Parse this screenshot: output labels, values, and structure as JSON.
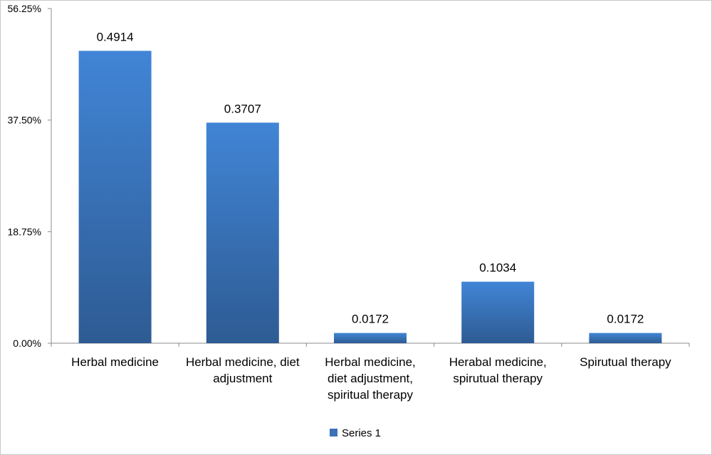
{
  "chart_data": {
    "type": "bar",
    "categories": [
      [
        "Herbal medicine"
      ],
      [
        "Herbal medicine, diet",
        "adjustment"
      ],
      [
        "Herbal medicine,",
        "diet adjustment,",
        "spiritual therapy"
      ],
      [
        "Herabal medicine,",
        "spirutual therapy"
      ],
      [
        "Spirutual therapy"
      ]
    ],
    "series": [
      {
        "name": "Series 1",
        "values": [
          0.4914,
          0.3707,
          0.0172,
          0.1034,
          0.0172
        ],
        "data_labels": [
          "0.4914",
          "0.3707",
          "0.0172",
          "0.1034",
          "0.0172"
        ]
      }
    ],
    "y_ticks": [
      "0.00%",
      "18.75%",
      "37.50%",
      "56.25%"
    ],
    "ylim": [
      0,
      0.5625
    ],
    "grid": false,
    "legend_position": "bottom",
    "colors": {
      "bar_top": "#4185d6",
      "bar_bottom": "#2e5b93",
      "axis": "#8c8c8c",
      "legend_swatch": "#3b72b8"
    }
  }
}
